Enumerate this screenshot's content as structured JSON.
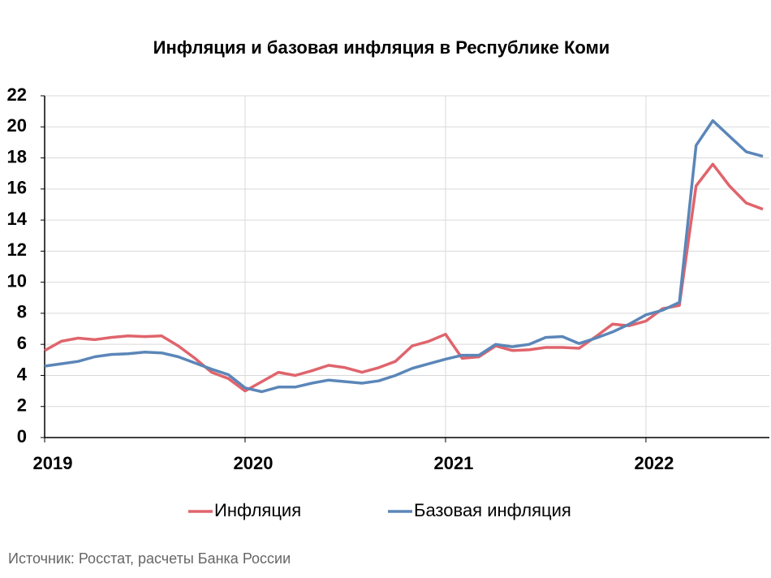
{
  "chart_data": {
    "type": "line",
    "title": "Инфляция и базовая инфляция в Республике Коми",
    "source": "Источник: Росстат, расчеты Банка России",
    "categories": [
      "2019",
      null,
      null,
      null,
      null,
      null,
      null,
      null,
      null,
      null,
      null,
      null,
      "2020",
      null,
      null,
      null,
      null,
      null,
      null,
      null,
      null,
      null,
      null,
      null,
      "2021",
      null,
      null,
      null,
      null,
      null,
      null,
      null,
      null,
      null,
      null,
      null,
      "2022",
      null,
      null,
      null,
      null,
      null,
      null,
      null
    ],
    "series": [
      {
        "name": "Инфляция",
        "color": "#e0646c",
        "values": [
          5.6,
          6.2,
          6.4,
          6.3,
          6.45,
          6.55,
          6.5,
          6.55,
          5.9,
          5.1,
          4.2,
          3.8,
          3.0,
          3.6,
          4.2,
          4.0,
          4.3,
          4.65,
          4.5,
          4.2,
          4.5,
          4.9,
          5.9,
          6.2,
          6.65,
          5.1,
          5.2,
          5.9,
          5.6,
          5.65,
          5.8,
          5.8,
          5.75,
          6.5,
          7.3,
          7.2,
          7.5,
          8.3,
          8.5,
          16.2,
          17.6,
          16.2,
          15.1,
          14.7
        ]
      },
      {
        "name": "Базовая инфляция",
        "color": "#5b86b8",
        "values": [
          4.6,
          4.75,
          4.9,
          5.2,
          5.35,
          5.4,
          5.5,
          5.45,
          5.2,
          4.8,
          4.4,
          4.05,
          3.2,
          2.95,
          3.25,
          3.25,
          3.5,
          3.7,
          3.6,
          3.5,
          3.65,
          4.0,
          4.45,
          4.75,
          5.05,
          5.3,
          5.3,
          6.0,
          5.85,
          6.0,
          6.45,
          6.5,
          6.05,
          6.4,
          6.8,
          7.3,
          7.9,
          8.2,
          8.7,
          18.8,
          20.4,
          19.4,
          18.4,
          18.1
        ]
      }
    ],
    "ylim": [
      0,
      22
    ],
    "yticks": [
      0,
      2,
      4,
      6,
      8,
      10,
      12,
      14,
      16,
      18,
      20,
      22
    ],
    "grid": true,
    "legend": "bottom"
  }
}
